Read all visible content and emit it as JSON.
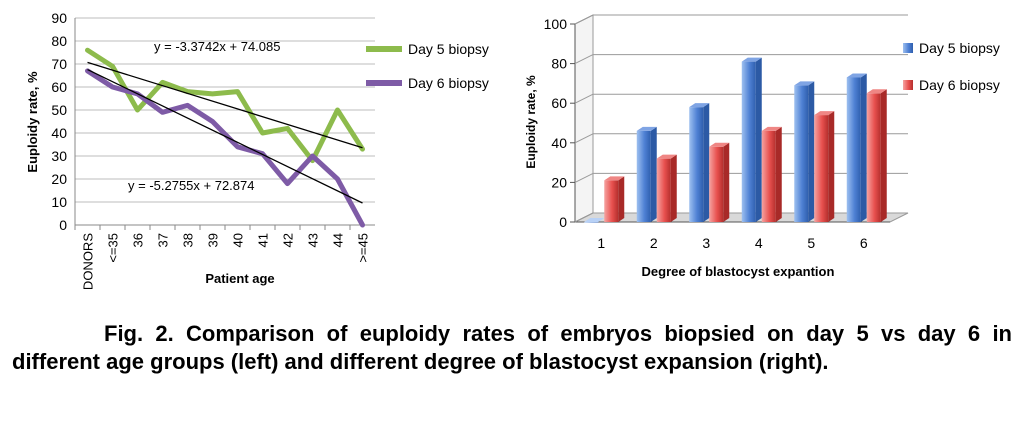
{
  "chart_data": [
    {
      "type": "line",
      "xlabel": "Patient age",
      "ylabel": "Euploidy rate, %",
      "ylim": [
        0,
        90
      ],
      "yticks": [
        "0",
        "10",
        "20",
        "30",
        "40",
        "50",
        "60",
        "70",
        "80",
        "90"
      ],
      "categories": [
        "DONORS",
        "<=35",
        "36",
        "37",
        "38",
        "39",
        "40",
        "41",
        "42",
        "43",
        "44",
        ">=45"
      ],
      "series": [
        {
          "name": "Day 5 biopsy",
          "color": "#8dbb4c",
          "values": [
            76,
            69,
            50,
            62,
            58,
            57,
            58,
            40,
            42,
            28,
            50,
            33
          ]
        },
        {
          "name": "Day 6 biopsy",
          "color": "#7e5ba6",
          "values": [
            67,
            60,
            57,
            49,
            52,
            45,
            34,
            31,
            18,
            30,
            20,
            0
          ]
        }
      ],
      "trendlines": [
        {
          "label": "y = -3.3742x + 74.085",
          "slope": -3.3742,
          "intercept": 74.085
        },
        {
          "label": "y = -5.2755x + 72.874",
          "slope": -5.2755,
          "intercept": 72.874
        }
      ],
      "legend_position": "right",
      "grid": true
    },
    {
      "type": "bar",
      "style": "3d-clustered",
      "xlabel": "Degree of blastocyst expantion",
      "ylabel": "Euploidy rate, %",
      "ylim": [
        0,
        100
      ],
      "yticks": [
        "0",
        "20",
        "40",
        "60",
        "80",
        "100"
      ],
      "categories": [
        "1",
        "2",
        "3",
        "4",
        "5",
        "6"
      ],
      "series": [
        {
          "name": "Day 5 biopsy",
          "color": "#4f81d4",
          "values": [
            0,
            46,
            58,
            81,
            69,
            73
          ]
        },
        {
          "name": "Day 6 biopsy",
          "color": "#e8514f",
          "values": [
            21,
            32,
            38,
            46,
            54,
            65
          ]
        }
      ],
      "legend_position": "right",
      "grid": true
    }
  ],
  "caption": {
    "label": "Fig. 2.",
    "text": "Comparison of euploidy rates of embryos biopsied on day 5 vs day 6 in different age groups (left) and different degree of blastocyst expansion (right)."
  }
}
